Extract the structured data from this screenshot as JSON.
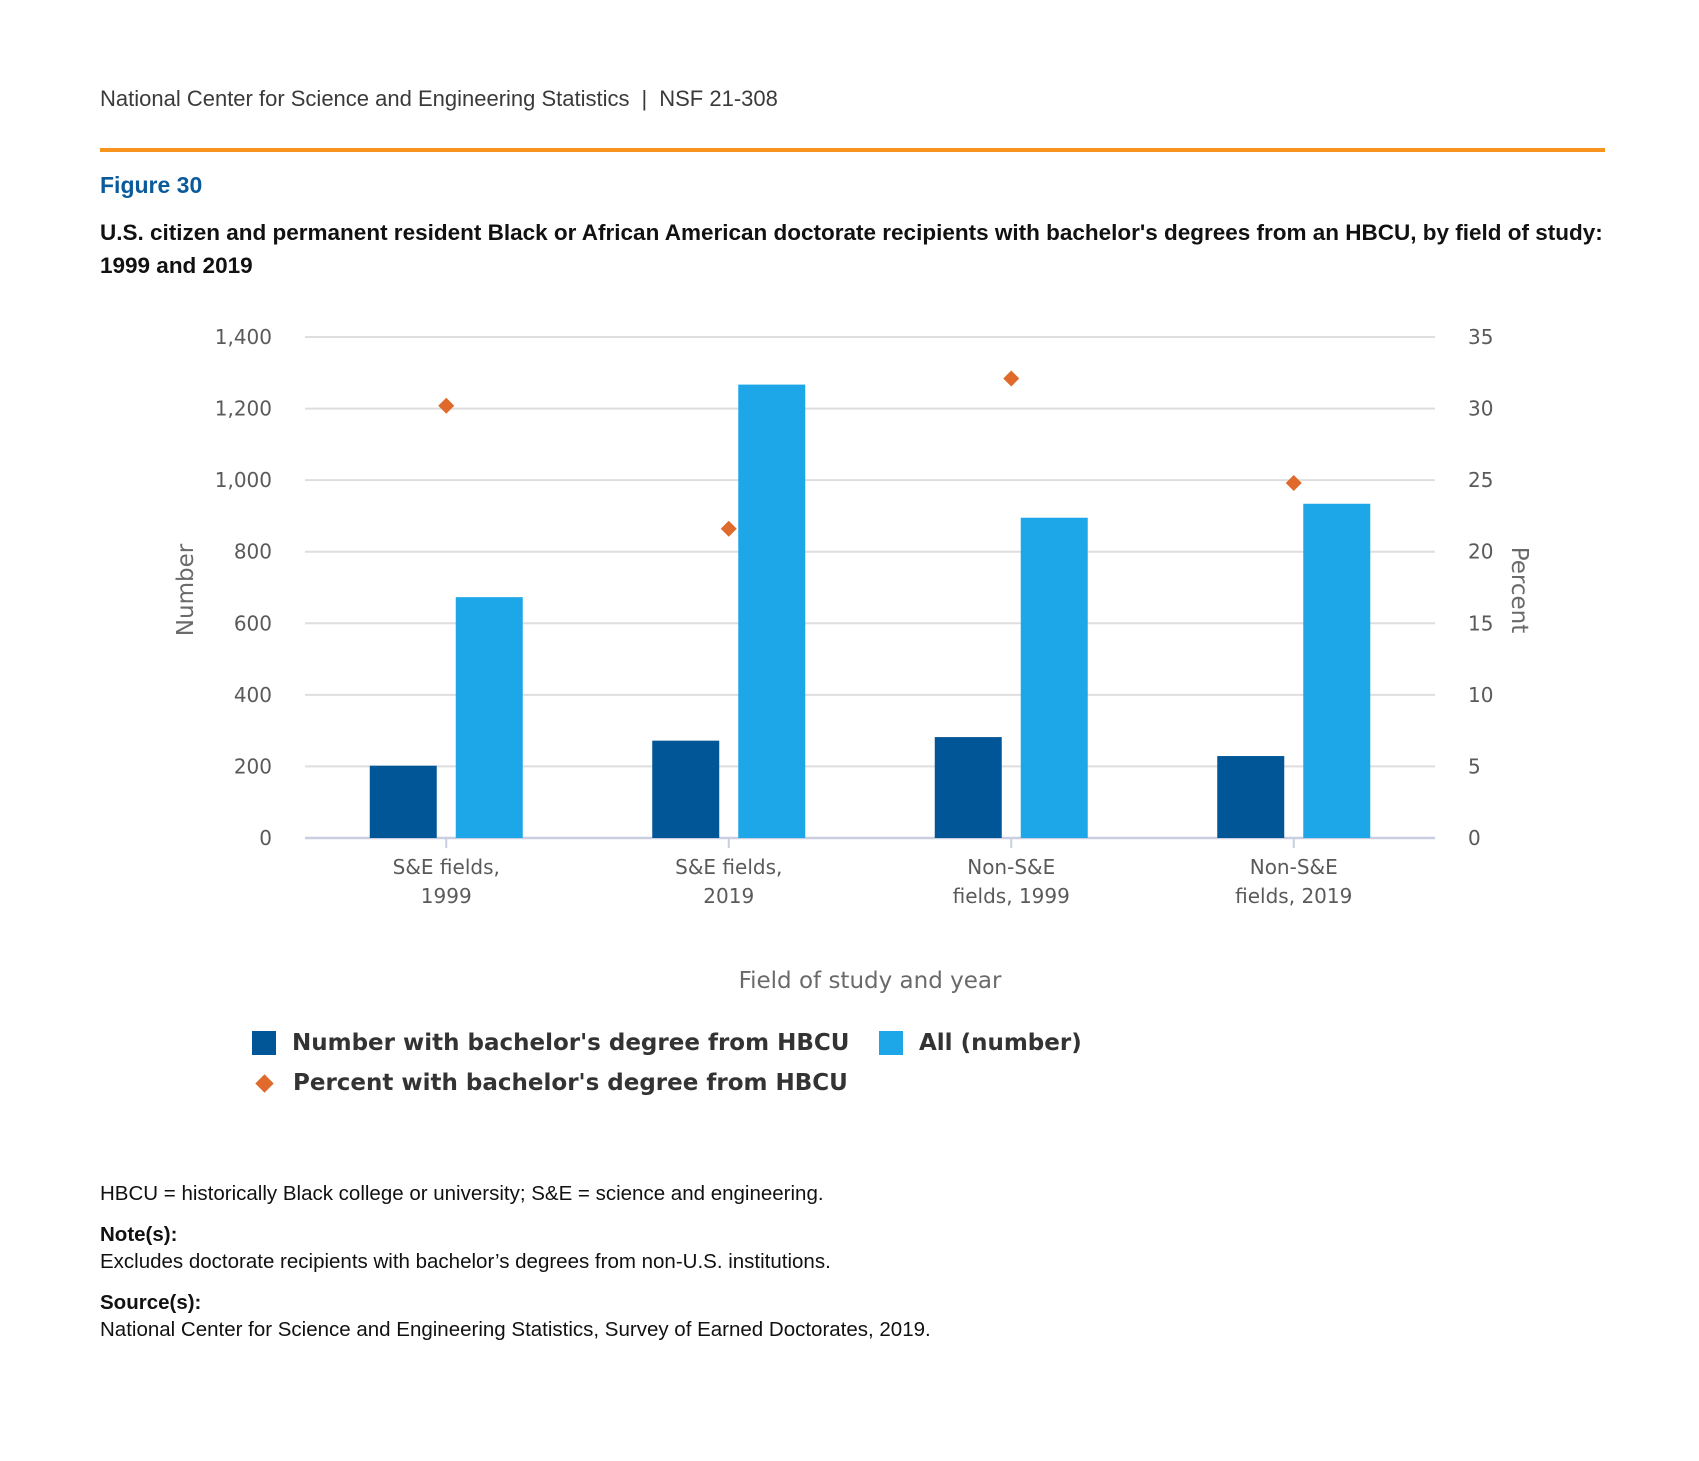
{
  "header": {
    "org": "National Center for Science and Engineering Statistics",
    "separator": "|",
    "report_id": "NSF 21-308"
  },
  "figure": {
    "label": "Figure 30",
    "title": "U.S. citizen and permanent resident Black or African American doctorate recipients with bachelor's degrees from an HBCU, by field of study: 1999 and 2019"
  },
  "colors": {
    "accent_rule": "#f7941d",
    "figure_label": "#0b5a9c",
    "hbcu_bar": "#005696",
    "all_bar": "#1ea7e8",
    "percent_marker": "#e06a2b",
    "grid": "#dedede",
    "baseline": "#c9cfe0"
  },
  "chart_data": {
    "type": "bar",
    "categories": [
      [
        "S&E fields,",
        "1999"
      ],
      [
        "S&E fields,",
        "2019"
      ],
      [
        "Non-S&E",
        "fields, 1999"
      ],
      [
        "Non-S&E",
        "fields, 2019"
      ]
    ],
    "series": [
      {
        "name": "Number with bachelor's degree from HBCU",
        "axis": "left",
        "kind": "bar",
        "values": [
          202,
          272,
          282,
          229
        ]
      },
      {
        "name": "All (number)",
        "axis": "left",
        "kind": "bar",
        "values": [
          673,
          1267,
          895,
          934
        ]
      },
      {
        "name": "Percent with bachelor's degree from HBCU",
        "axis": "right",
        "kind": "marker",
        "marker": "diamond",
        "values": [
          30.2,
          21.6,
          32.1,
          24.8
        ]
      }
    ],
    "xlabel": "Field of study and year",
    "ylabel": "Number",
    "y2label": "Percent",
    "ylim": [
      0,
      1400
    ],
    "y2lim": [
      0,
      35
    ],
    "yticks": [
      "0",
      "200",
      "400",
      "600",
      "800",
      "1,000",
      "1,200",
      "1,400"
    ],
    "y2ticks": [
      "0",
      "5",
      "10",
      "15",
      "20",
      "25",
      "30",
      "35"
    ],
    "grid": true,
    "legend_position": "bottom"
  },
  "legend": {
    "items": [
      {
        "label": "Number with bachelor's degree from HBCU",
        "shape": "square",
        "color": "#005696"
      },
      {
        "label": "All (number)",
        "shape": "square",
        "color": "#1ea7e8"
      },
      {
        "label": "Percent with bachelor's degree from HBCU",
        "shape": "diamond",
        "color": "#e06a2b"
      }
    ]
  },
  "footnotes": {
    "abbreviations": "HBCU = historically Black college or university; S&E = science and engineering.",
    "notes_heading": "Note(s):",
    "notes_text": "Excludes doctorate recipients with bachelor’s degrees from non-U.S. institutions.",
    "sources_heading": "Source(s):",
    "sources_text": "National Center for Science and Engineering Statistics, Survey of Earned Doctorates, 2019."
  }
}
